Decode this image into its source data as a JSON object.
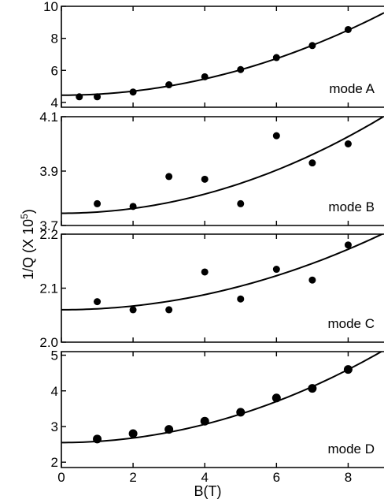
{
  "chart_data": {
    "type": "scatter",
    "xlabel": "B(T)",
    "ylabel": "1/Q (X 10⁵)",
    "ylabel_main": "1/Q (X 10",
    "ylabel_sup": "5",
    "ylabel_close": ")",
    "xlim": [
      0,
      9
    ],
    "xticks": [
      0,
      2,
      4,
      6,
      8
    ],
    "xtick_labels": [
      "0",
      "2",
      "4",
      "6",
      "8"
    ],
    "panels": [
      {
        "label": "mode A",
        "ylim": [
          3.7,
          10
        ],
        "yticks": [
          4,
          6,
          8,
          10
        ],
        "ytick_labels": [
          "4",
          "6",
          "8",
          "10"
        ],
        "x": [
          0.5,
          1,
          2,
          3,
          4,
          5,
          6,
          7,
          8
        ],
        "y": [
          4.35,
          4.35,
          4.65,
          5.1,
          5.6,
          6.05,
          6.8,
          7.55,
          8.55
        ],
        "fit": {
          "a": 4.45,
          "b": 0.0635
        }
      },
      {
        "label": "mode B",
        "ylim": [
          3.7,
          4.1
        ],
        "yticks": [
          3.7,
          3.9,
          4.1
        ],
        "ytick_labels": [
          "3.7",
          "3.9",
          "4.1"
        ],
        "x": [
          1,
          2,
          3,
          4,
          5,
          6,
          7,
          8
        ],
        "y": [
          3.78,
          3.77,
          3.88,
          3.87,
          3.78,
          4.03,
          3.93,
          4.0
        ],
        "fit": {
          "a": 3.745,
          "b": 0.0044
        }
      },
      {
        "label": "mode C",
        "ylim": [
          2.0,
          2.2
        ],
        "yticks": [
          2.0,
          2.1,
          2.2
        ],
        "ytick_labels": [
          "2.0",
          "2.1",
          "2.2"
        ],
        "x": [
          1,
          2,
          3,
          4,
          5,
          6,
          7,
          8
        ],
        "y": [
          2.075,
          2.06,
          2.06,
          2.13,
          2.08,
          2.135,
          2.115,
          2.18
        ],
        "fit": {
          "a": 2.06,
          "b": 0.00175
        }
      },
      {
        "label": "mode D",
        "ylim": [
          1.85,
          5.1
        ],
        "yticks": [
          2,
          3,
          4,
          5
        ],
        "ytick_labels": [
          "2",
          "3",
          "4",
          "5"
        ],
        "x": [
          1,
          2,
          3,
          4,
          5,
          6,
          7,
          8
        ],
        "y": [
          2.65,
          2.8,
          2.92,
          3.15,
          3.4,
          3.8,
          4.07,
          4.6
        ],
        "fit": {
          "a": 2.55,
          "b": 0.032
        }
      }
    ],
    "grid": false
  }
}
